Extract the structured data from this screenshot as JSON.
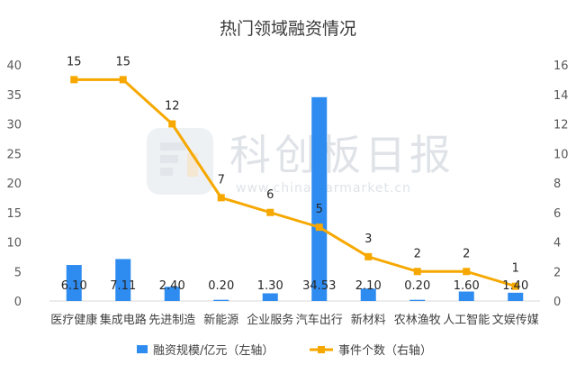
{
  "watermark": {
    "brand": "科创板日报",
    "url": "www.chinastarmarket.cn"
  },
  "chart_data": {
    "type": "bar",
    "title": "热门领域融资情况",
    "categories": [
      "医疗健康",
      "集成电路",
      "先进制造",
      "新能源",
      "企业服务",
      "汽车出行",
      "新材料",
      "农林渔牧",
      "人工智能",
      "文娱传媒"
    ],
    "series": [
      {
        "name": "融资规模/亿元（左轴）",
        "type": "bar",
        "axis": "left",
        "color": "#2E8BF0",
        "values": [
          6.1,
          7.11,
          2.4,
          0.2,
          1.3,
          34.53,
          2.1,
          0.2,
          1.6,
          1.4
        ],
        "labels": [
          "6.10",
          "7.11",
          "2.40",
          "0.20",
          "1.30",
          "34.53",
          "2.10",
          "0.20",
          "1.60",
          "1.40"
        ]
      },
      {
        "name": "事件个数（右轴）",
        "type": "line",
        "axis": "right",
        "color": "#F6A800",
        "values": [
          15,
          15,
          12,
          7,
          6,
          5,
          3,
          2,
          2,
          1
        ],
        "labels": [
          "15",
          "15",
          "12",
          "7",
          "6",
          "5",
          "3",
          "2",
          "2",
          "1"
        ]
      }
    ],
    "y_left": {
      "min": 0,
      "max": 40,
      "ticks": [
        "0",
        "5",
        "10",
        "15",
        "20",
        "25",
        "30",
        "35",
        "40"
      ]
    },
    "y_right": {
      "min": 0,
      "max": 16,
      "ticks": [
        "0",
        "2",
        "4",
        "6",
        "8",
        "10",
        "12",
        "14",
        "16"
      ]
    },
    "grid": false,
    "legend": "bottom"
  }
}
